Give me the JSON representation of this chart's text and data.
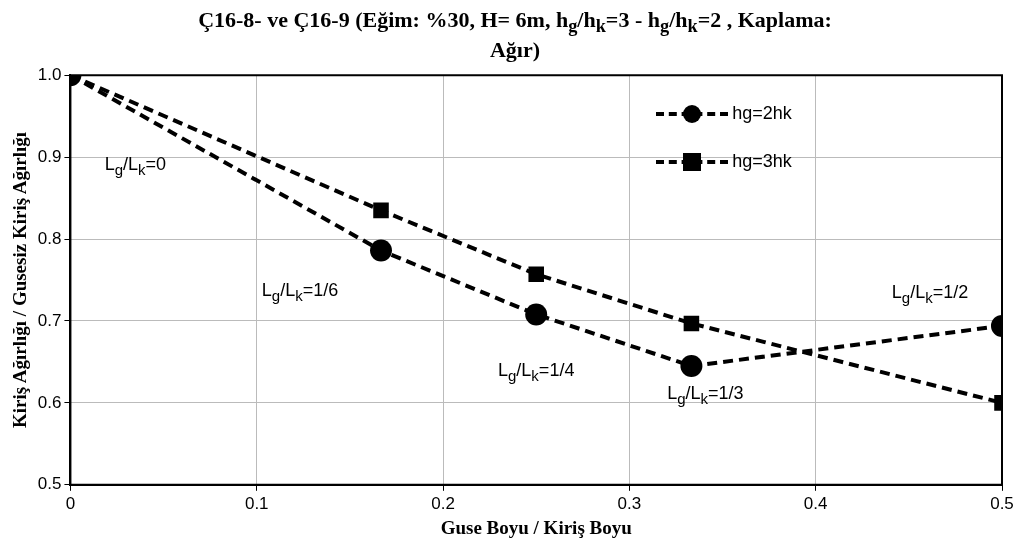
{
  "chart_data": {
    "type": "line",
    "title": "Ç16-8- ve Ç16-9    (Eğim: %30,  H= 6m,  h$_{g}$/h$_{k}$=3 - h$_{g}$/h$_{k}$=2 , Kaplama: Ağır)",
    "xlabel": "Guse Boyu / Kiriş Boyu",
    "ylabel": "Kiriş Ağırlığı / Gusesiz Kiriş Ağırlığı",
    "x": [
      0,
      0.1667,
      0.25,
      0.3333,
      0.5
    ],
    "series": [
      {
        "name": "hg=2hk",
        "color": "#000000",
        "marker": "circle",
        "values": [
          1.0,
          0.786,
          0.708,
          0.645,
          0.694
        ]
      },
      {
        "name": "hg=3hk",
        "color": "#000000",
        "marker": "square",
        "values": [
          1.0,
          0.835,
          0.757,
          0.697,
          0.6
        ]
      }
    ],
    "line_style": "dashed",
    "xlim": [
      0,
      0.5
    ],
    "xticks": [
      0,
      0.1,
      0.2,
      0.3,
      0.4,
      0.5
    ],
    "ylim": [
      0.5,
      1.0
    ],
    "yticks": [
      {
        "value": 0.5,
        "label": "0.5"
      },
      {
        "value": 0.6,
        "label": "0.6"
      },
      {
        "value": 0.7,
        "label": "0.7"
      },
      {
        "value": 0.8,
        "label": "0.8"
      },
      {
        "value": 0.9,
        "label": "0.9"
      },
      {
        "value": 1,
        "label": "1.0"
      }
    ],
    "grid": true,
    "legend": "top",
    "annotations": [
      "L$_{g}$/L$_{k}$=0",
      "L$_{g}$/L$_{k}$=1/6",
      "L$_{g}$/L$_{k}$=1/4",
      "L$_{g}$/L$_{k}$=1/3",
      "L$_{g}$/L$_{k}$=1/2"
    ]
  }
}
